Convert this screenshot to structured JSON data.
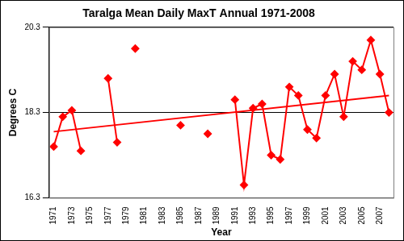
{
  "chart_data": {
    "type": "line",
    "title": "Taralga Mean Daily MaxT Annual 1971-2008",
    "x_label": "Year",
    "y_label": "Degrees C",
    "categories": [
      "1971",
      null,
      "1973",
      null,
      "1975",
      null,
      "1977",
      null,
      "1979",
      null,
      "1981",
      null,
      "1983",
      null,
      "1985",
      null,
      "1987",
      null,
      "1989",
      null,
      "1991",
      null,
      "1993",
      null,
      "1995",
      null,
      "1997",
      null,
      "1999",
      null,
      "2001",
      null,
      "2003",
      null,
      "2005",
      null,
      "2007",
      null
    ],
    "series": [
      {
        "color": "#ff0000",
        "marker": "diamond",
        "line_style": "solid",
        "values": [
          17.5,
          18.2,
          18.35,
          17.4,
          null,
          null,
          19.1,
          17.6,
          null,
          19.8,
          null,
          null,
          null,
          null,
          18.0,
          null,
          null,
          17.8,
          null,
          null,
          18.6,
          16.6,
          18.4,
          18.5,
          17.3,
          17.2,
          18.9,
          18.7,
          17.9,
          17.7,
          18.7,
          19.2,
          18.2,
          19.5,
          19.3,
          20.0,
          19.2,
          18.3
        ]
      },
      {
        "color": "#ff0000",
        "marker": "none",
        "line_style": "solid",
        "values": [
          17.85,
          null,
          null,
          null,
          null,
          null,
          null,
          null,
          null,
          null,
          null,
          null,
          null,
          null,
          null,
          null,
          null,
          null,
          null,
          null,
          null,
          null,
          null,
          null,
          null,
          null,
          null,
          null,
          null,
          null,
          null,
          null,
          null,
          null,
          null,
          null,
          null,
          18.7
        ]
      }
    ],
    "ylim": [
      16.3,
      20.3
    ],
    "yticks": [
      16.3,
      18.3,
      20.3
    ],
    "grid": true
  }
}
